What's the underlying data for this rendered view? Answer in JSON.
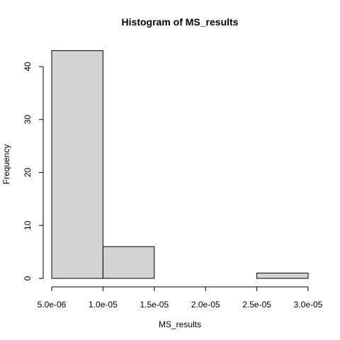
{
  "chart_data": {
    "type": "bar",
    "subtype": "histogram",
    "title": "Histogram of MS_results",
    "xlabel": "MS_results",
    "ylabel": "Frequency",
    "bins": [
      {
        "start": 5e-06,
        "end": 1e-05,
        "count": 43
      },
      {
        "start": 1e-05,
        "end": 1.5e-05,
        "count": 6
      },
      {
        "start": 1.5e-05,
        "end": 2e-05,
        "count": 0
      },
      {
        "start": 2e-05,
        "end": 2.5e-05,
        "count": 0
      },
      {
        "start": 2.5e-05,
        "end": 3e-05,
        "count": 1
      }
    ],
    "xlim": [
      5e-06,
      3e-05
    ],
    "ylim": [
      0,
      43
    ],
    "x_ticks": [
      {
        "value": 5e-06,
        "label": "5.0e-06"
      },
      {
        "value": 1e-05,
        "label": "1.0e-05"
      },
      {
        "value": 1.5e-05,
        "label": "1.5e-05"
      },
      {
        "value": 2e-05,
        "label": "2.0e-05"
      },
      {
        "value": 2.5e-05,
        "label": "2.5e-05"
      },
      {
        "value": 3e-05,
        "label": "3.0e-05"
      }
    ],
    "y_ticks": [
      {
        "value": 0,
        "label": "0"
      },
      {
        "value": 10,
        "label": "10"
      },
      {
        "value": 20,
        "label": "20"
      },
      {
        "value": 30,
        "label": "30"
      },
      {
        "value": 40,
        "label": "40"
      }
    ],
    "bar_color": "#d3d3d3",
    "grid": false,
    "legend": "none"
  }
}
